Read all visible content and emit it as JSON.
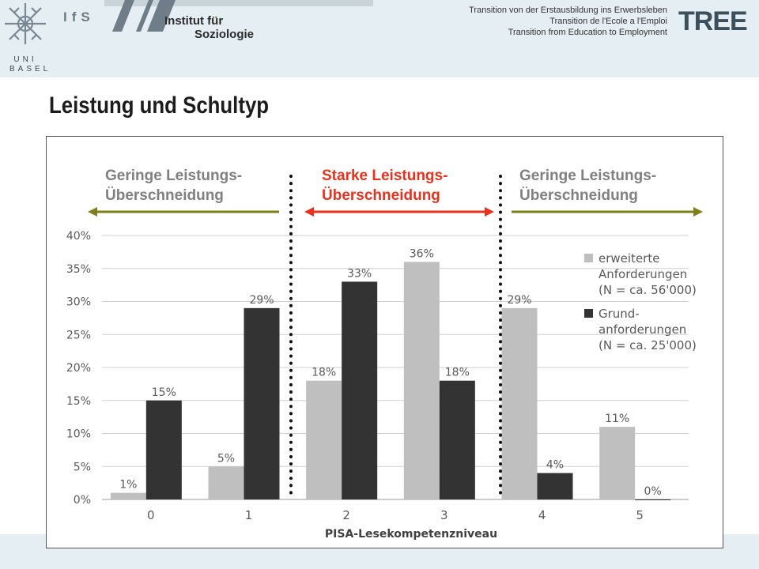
{
  "header": {
    "university": "UNI BASEL",
    "institute_logo": "IfS",
    "institute_name_line1": "Institut für",
    "institute_name_line2": "Soziologie",
    "project_lines": [
      "Transition von der Erstausbildung ins Erwerbsleben",
      "Transition de l'Ecole a l'Emploi",
      "Transition from Education to Employment"
    ],
    "project_logo": "TREE"
  },
  "slide": {
    "title": "Leistung und Schultyp"
  },
  "chart_data": {
    "type": "bar",
    "categories": [
      "0",
      "1",
      "2",
      "3",
      "4",
      "5"
    ],
    "series": [
      {
        "name": "erweiterte Anforderungen (N = ca. 56'000)",
        "values": [
          1,
          5,
          18,
          36,
          29,
          11
        ],
        "color": "#bfbfbf"
      },
      {
        "name": "Grund-anforderungen (N = ca. 25'000)",
        "values": [
          15,
          29,
          33,
          18,
          4,
          0
        ],
        "color": "#333333"
      }
    ],
    "data_labels": [
      [
        "1%",
        "5%",
        "18%",
        "36%",
        "29%",
        "11%"
      ],
      [
        "15%",
        "29%",
        "33%",
        "18%",
        "4%",
        "0%"
      ]
    ],
    "legend": {
      "position": "top-right",
      "entries": [
        [
          "erweiterte",
          "Anforderungen",
          "(N = ca. 56'000)"
        ],
        [
          "Grund-",
          "anforderungen",
          "(N = ca. 25'000)"
        ]
      ]
    },
    "xlabel": "PISA-Lesekompetenzniveau",
    "ylabel": "",
    "ylim": [
      0,
      40
    ],
    "yticks": [
      "0%",
      "5%",
      "10%",
      "15%",
      "20%",
      "25%",
      "30%",
      "35%",
      "40%"
    ],
    "grid": true,
    "annotations": [
      {
        "lines": [
          "Geringe Leistungs-",
          "Überschneidung"
        ],
        "color": "#808080",
        "arrow_color": "#7f7f1a"
      },
      {
        "lines": [
          "Starke Leistungs-",
          "Überschneidung"
        ],
        "color": "#e8321e",
        "arrow_color": "#e8321e"
      },
      {
        "lines": [
          "Geringe Leistungs-",
          "Überschneidung"
        ],
        "color": "#808080",
        "arrow_color": "#7f7f1a"
      }
    ]
  }
}
